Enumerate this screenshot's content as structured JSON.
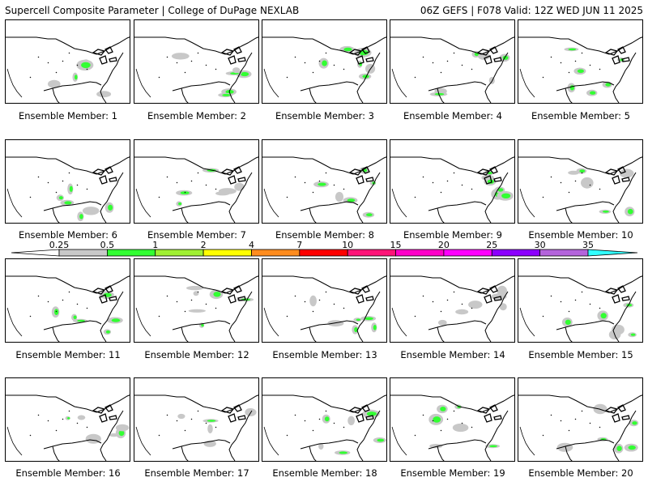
{
  "header": {
    "title": "Supercell Composite Parameter | College of DuPage NEXLAB",
    "info": "06Z GEFS | F078 Valid: 12Z WED JUN 11 2025"
  },
  "member_label_prefix": "Ensemble Member: ",
  "members": [
    1,
    2,
    3,
    4,
    5,
    6,
    7,
    8,
    9,
    10,
    11,
    12,
    13,
    14,
    15,
    16,
    17,
    18,
    19,
    20
  ],
  "colorbar": {
    "levels": [
      "0.25",
      "0.5",
      "1",
      "2",
      "4",
      "7",
      "10",
      "15",
      "20",
      "25",
      "30",
      "35"
    ],
    "colors": [
      "#c8c8c8",
      "#32ff32",
      "#a0f032",
      "#ffff00",
      "#ff8c1e",
      "#ff0000",
      "#ff1478",
      "#ff00c8",
      "#ff00ff",
      "#8c00ff",
      "#b464dc",
      "#32ffff"
    ]
  }
}
